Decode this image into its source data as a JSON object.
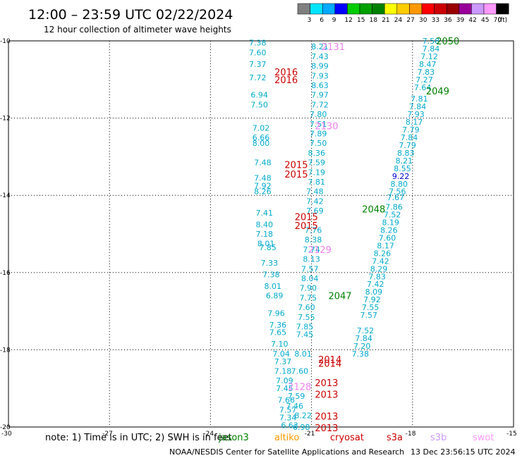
{
  "title": "12:00 – 23:59 UTC 02/22/2024",
  "subtitle": "12 hour collection of altimeter wave heights",
  "colorbar": {
    "labels": [
      "3",
      "6",
      "9",
      "12",
      "15",
      "18",
      "21",
      "24",
      "27",
      "30",
      "33",
      "36",
      "39",
      "42",
      "45",
      "70"
    ],
    "unit": "(ft)",
    "colors": [
      "#808080",
      "#00e5ff",
      "#00aaff",
      "#0000ff",
      "#00cc00",
      "#00a000",
      "#008000",
      "#ffff00",
      "#ffcc00",
      "#ff9900",
      "#ff0000",
      "#cc0000",
      "#990000",
      "#990099",
      "#cc99ff",
      "#ff99ff",
      "#000000"
    ]
  },
  "note": "note:  1) Time is in UTC; 2) SWH is in feet",
  "satellites": [
    {
      "name": "jason3",
      "color": "#008000"
    },
    {
      "name": "altiko",
      "color": "#ff9900"
    },
    {
      "name": "cryosat",
      "color": "#cc0000"
    },
    {
      "name": "s3a",
      "color": "#cc0000"
    },
    {
      "name": "s3b",
      "color": "#cc99ff"
    },
    {
      "name": "swot",
      "color": "#ff99ff"
    }
  ],
  "credit": "NOAA/NESDIS Center for Satellite Applications and Research",
  "timestamp": "13 Dec 23:56:15 UTC 2024",
  "chart_data": {
    "type": "scatter",
    "xlim": [
      -30,
      -15
    ],
    "ylim": [
      -20,
      -10
    ],
    "xticks": [
      "-30",
      "-27",
      "-24",
      "-21",
      "-18",
      "-15"
    ],
    "yticks": [
      "-10",
      "-12",
      "-14",
      "-16",
      "-18",
      "-20"
    ],
    "grid": true,
    "track_labels": [
      {
        "text": "2050",
        "x": -17.3,
        "y": -10.0,
        "color": "#008000"
      },
      {
        "text": "2049",
        "x": -17.6,
        "y": -11.3,
        "color": "#008000"
      },
      {
        "text": "2048",
        "x": -19.5,
        "y": -14.35,
        "color": "#008000"
      },
      {
        "text": "2047",
        "x": -20.5,
        "y": -16.6,
        "color": "#008000"
      },
      {
        "text": "2131",
        "x": -20.7,
        "y": -10.15,
        "color": "#ee82ee"
      },
      {
        "text": "2130",
        "x": -20.9,
        "y": -12.2,
        "color": "#ee82ee"
      },
      {
        "text": "2129",
        "x": -21.1,
        "y": -15.4,
        "color": "#ee82ee"
      },
      {
        "text": "2128",
        "x": -21.7,
        "y": -18.95,
        "color": "#ee82ee"
      },
      {
        "text": "2016",
        "x": -22.1,
        "y": -10.8,
        "color": "#cc0000"
      },
      {
        "text": "2016",
        "x": -22.1,
        "y": -11.0,
        "color": "#cc0000"
      },
      {
        "text": "2015",
        "x": -21.8,
        "y": -13.2,
        "color": "#cc0000"
      },
      {
        "text": "2015",
        "x": -21.8,
        "y": -13.45,
        "color": "#cc0000"
      },
      {
        "text": "2015",
        "x": -21.5,
        "y": -14.55,
        "color": "#cc0000"
      },
      {
        "text": "2015",
        "x": -21.5,
        "y": -14.78,
        "color": "#cc0000"
      },
      {
        "text": "2014",
        "x": -20.8,
        "y": -18.25,
        "color": "#cc0000"
      },
      {
        "text": "2014",
        "x": -20.8,
        "y": -18.35,
        "color": "#cc0000"
      },
      {
        "text": "2013",
        "x": -20.9,
        "y": -18.85,
        "color": "#cc0000"
      },
      {
        "text": "2013",
        "x": -20.9,
        "y": -19.15,
        "color": "#cc0000"
      },
      {
        "text": "2013",
        "x": -20.9,
        "y": -19.72,
        "color": "#cc0000"
      },
      {
        "text": "2013",
        "x": -20.9,
        "y": -20.02,
        "color": "#cc0000"
      }
    ],
    "points": [
      {
        "v": "7.58",
        "x": -17.45,
        "y": -10.0,
        "c": "#00aacc"
      },
      {
        "v": "7.84",
        "x": -17.45,
        "y": -10.2,
        "c": "#00aacc"
      },
      {
        "v": "7.12",
        "x": -17.5,
        "y": -10.4,
        "c": "#00aacc"
      },
      {
        "v": "8.47",
        "x": -17.55,
        "y": -10.6,
        "c": "#00aacc"
      },
      {
        "v": "7.83",
        "x": -17.6,
        "y": -10.8,
        "c": "#00aacc"
      },
      {
        "v": "7.27",
        "x": -17.65,
        "y": -11.0,
        "c": "#00aacc"
      },
      {
        "v": "7.64",
        "x": -17.7,
        "y": -11.2,
        "c": "#00aacc"
      },
      {
        "v": "7.81",
        "x": -17.8,
        "y": -11.5,
        "c": "#00aacc"
      },
      {
        "v": "7.84",
        "x": -17.85,
        "y": -11.7,
        "c": "#00aacc"
      },
      {
        "v": "7.93",
        "x": -17.9,
        "y": -11.9,
        "c": "#00aacc"
      },
      {
        "v": "8.17",
        "x": -17.95,
        "y": -12.1,
        "c": "#00aacc"
      },
      {
        "v": "7.79",
        "x": -18.05,
        "y": -12.3,
        "c": "#00aacc"
      },
      {
        "v": "7.84",
        "x": -18.1,
        "y": -12.5,
        "c": "#00aacc"
      },
      {
        "v": "7.79",
        "x": -18.15,
        "y": -12.7,
        "c": "#00aacc"
      },
      {
        "v": "8.83",
        "x": -18.2,
        "y": -12.9,
        "c": "#00aacc"
      },
      {
        "v": "8.21",
        "x": -18.25,
        "y": -13.1,
        "c": "#00aacc"
      },
      {
        "v": "8.55",
        "x": -18.3,
        "y": -13.3,
        "c": "#00aacc"
      },
      {
        "v": "9.22",
        "x": -18.35,
        "y": -13.5,
        "c": "#0000cc"
      },
      {
        "v": "8.80",
        "x": -18.4,
        "y": -13.7,
        "c": "#00aacc"
      },
      {
        "v": "7.56",
        "x": -18.45,
        "y": -13.9,
        "c": "#00aacc"
      },
      {
        "v": "7.67",
        "x": -18.5,
        "y": -14.05,
        "c": "#00aacc"
      },
      {
        "v": "7.86",
        "x": -18.55,
        "y": -14.3,
        "c": "#00aacc"
      },
      {
        "v": "7.52",
        "x": -18.6,
        "y": -14.5,
        "c": "#00aacc"
      },
      {
        "v": "8.19",
        "x": -18.65,
        "y": -14.7,
        "c": "#00aacc"
      },
      {
        "v": "8.26",
        "x": -18.7,
        "y": -14.9,
        "c": "#00aacc"
      },
      {
        "v": "7.60",
        "x": -18.75,
        "y": -15.1,
        "c": "#00aacc"
      },
      {
        "v": "8.17",
        "x": -18.8,
        "y": -15.3,
        "c": "#00aacc"
      },
      {
        "v": "8.26",
        "x": -18.9,
        "y": -15.5,
        "c": "#00aacc"
      },
      {
        "v": "7.42",
        "x": -18.95,
        "y": -15.7,
        "c": "#00aacc"
      },
      {
        "v": "8.29",
        "x": -19.0,
        "y": -15.9,
        "c": "#00aacc"
      },
      {
        "v": "7.83",
        "x": -19.05,
        "y": -16.1,
        "c": "#00aacc"
      },
      {
        "v": "7.42",
        "x": -19.1,
        "y": -16.3,
        "c": "#00aacc"
      },
      {
        "v": "8.09",
        "x": -19.15,
        "y": -16.5,
        "c": "#00aacc"
      },
      {
        "v": "7.92",
        "x": -19.2,
        "y": -16.7,
        "c": "#00aacc"
      },
      {
        "v": "7.55",
        "x": -19.25,
        "y": -16.9,
        "c": "#00aacc"
      },
      {
        "v": "7.57",
        "x": -19.3,
        "y": -17.1,
        "c": "#00aacc"
      },
      {
        "v": "7.52",
        "x": -19.4,
        "y": -17.5,
        "c": "#00aacc"
      },
      {
        "v": "7.84",
        "x": -19.45,
        "y": -17.7,
        "c": "#00aacc"
      },
      {
        "v": "7.20",
        "x": -19.5,
        "y": -17.9,
        "c": "#00aacc"
      },
      {
        "v": "7.38",
        "x": -19.55,
        "y": -18.1,
        "c": "#00aacc"
      },
      {
        "v": "8.21",
        "x": -20.75,
        "y": -10.15,
        "c": "#00aacc"
      },
      {
        "v": "7.43",
        "x": -20.75,
        "y": -10.4,
        "c": "#00aacc"
      },
      {
        "v": "8.99",
        "x": -20.75,
        "y": -10.65,
        "c": "#00aacc"
      },
      {
        "v": "7.93",
        "x": -20.75,
        "y": -10.9,
        "c": "#00aacc"
      },
      {
        "v": "8.63",
        "x": -20.75,
        "y": -11.15,
        "c": "#00aacc"
      },
      {
        "v": "7.97",
        "x": -20.75,
        "y": -11.4,
        "c": "#00aacc"
      },
      {
        "v": "7.72",
        "x": -20.75,
        "y": -11.65,
        "c": "#00aacc"
      },
      {
        "v": "7.80",
        "x": -20.8,
        "y": -11.9,
        "c": "#00aacc"
      },
      {
        "v": "7.51",
        "x": -20.8,
        "y": -12.15,
        "c": "#00aacc"
      },
      {
        "v": "7.89",
        "x": -20.8,
        "y": -12.4,
        "c": "#00aacc"
      },
      {
        "v": "7.50",
        "x": -20.8,
        "y": -12.65,
        "c": "#00aacc"
      },
      {
        "v": "8.36",
        "x": -20.85,
        "y": -12.9,
        "c": "#00aacc"
      },
      {
        "v": "7.59",
        "x": -20.85,
        "y": -13.15,
        "c": "#00aacc"
      },
      {
        "v": "7.19",
        "x": -20.85,
        "y": -13.4,
        "c": "#00aacc"
      },
      {
        "v": "7.81",
        "x": -20.85,
        "y": -13.65,
        "c": "#00aacc"
      },
      {
        "v": "7.48",
        "x": -20.9,
        "y": -13.9,
        "c": "#00aacc"
      },
      {
        "v": "7.42",
        "x": -20.9,
        "y": -14.15,
        "c": "#00aacc"
      },
      {
        "v": "7.69",
        "x": -20.9,
        "y": -14.4,
        "c": "#00aacc"
      },
      {
        "v": "7.76",
        "x": -20.95,
        "y": -14.9,
        "c": "#00aacc"
      },
      {
        "v": "8.38",
        "x": -20.95,
        "y": -15.15,
        "c": "#00aacc"
      },
      {
        "v": "7.74",
        "x": -21.0,
        "y": -15.4,
        "c": "#00aacc"
      },
      {
        "v": "8.13",
        "x": -21.0,
        "y": -15.65,
        "c": "#00aacc"
      },
      {
        "v": "7.57",
        "x": -21.05,
        "y": -15.9,
        "c": "#00aacc"
      },
      {
        "v": "8.04",
        "x": -21.05,
        "y": -16.15,
        "c": "#00aacc"
      },
      {
        "v": "7.90",
        "x": -21.1,
        "y": -16.4,
        "c": "#00aacc"
      },
      {
        "v": "7.75",
        "x": -21.1,
        "y": -16.65,
        "c": "#00aacc"
      },
      {
        "v": "7.60",
        "x": -21.15,
        "y": -16.9,
        "c": "#00aacc"
      },
      {
        "v": "7.55",
        "x": -21.15,
        "y": -17.15,
        "c": "#00aacc"
      },
      {
        "v": "7.85",
        "x": -21.2,
        "y": -17.4,
        "c": "#00aacc"
      },
      {
        "v": "7.45",
        "x": -21.2,
        "y": -17.6,
        "c": "#00aacc"
      },
      {
        "v": "8.01",
        "x": -21.25,
        "y": -18.1,
        "c": "#00aacc"
      },
      {
        "v": "7.60",
        "x": -21.35,
        "y": -18.55,
        "c": "#00aacc"
      },
      {
        "v": "7.59",
        "x": -21.45,
        "y": -19.2,
        "c": "#00aacc"
      },
      {
        "v": "7.46",
        "x": -21.5,
        "y": -19.45,
        "c": "#00aacc"
      },
      {
        "v": "7.38",
        "x": -22.6,
        "y": -10.05,
        "c": "#00aacc"
      },
      {
        "v": "7.60",
        "x": -22.6,
        "y": -10.3,
        "c": "#00aacc"
      },
      {
        "v": "7.37",
        "x": -22.6,
        "y": -10.6,
        "c": "#00aacc"
      },
      {
        "v": "7.72",
        "x": -22.6,
        "y": -10.95,
        "c": "#00aacc"
      },
      {
        "v": "6.94",
        "x": -22.55,
        "y": -11.4,
        "c": "#00aacc"
      },
      {
        "v": "7.50",
        "x": -22.55,
        "y": -11.65,
        "c": "#00aacc"
      },
      {
        "v": "7.02",
        "x": -22.5,
        "y": -12.25,
        "c": "#00aacc"
      },
      {
        "v": "6.66",
        "x": -22.5,
        "y": -12.5,
        "c": "#00aacc"
      },
      {
        "v": "8.00",
        "x": -22.5,
        "y": -12.65,
        "c": "#00aacc"
      },
      {
        "v": "7.48",
        "x": -22.45,
        "y": -13.15,
        "c": "#00aacc"
      },
      {
        "v": "7.48",
        "x": -22.45,
        "y": -13.55,
        "c": "#00aacc"
      },
      {
        "v": "7.92",
        "x": -22.45,
        "y": -13.75,
        "c": "#00aacc"
      },
      {
        "v": "8.26",
        "x": -22.45,
        "y": -13.9,
        "c": "#00aacc"
      },
      {
        "v": "7.41",
        "x": -22.4,
        "y": -14.45,
        "c": "#00aacc"
      },
      {
        "v": "8.40",
        "x": -22.4,
        "y": -14.75,
        "c": "#00aacc"
      },
      {
        "v": "7.18",
        "x": -22.4,
        "y": -15.0,
        "c": "#00aacc"
      },
      {
        "v": "8.01",
        "x": -22.35,
        "y": -15.25,
        "c": "#00aacc"
      },
      {
        "v": "7.85",
        "x": -22.3,
        "y": -15.35,
        "c": "#00aacc"
      },
      {
        "v": "7.33",
        "x": -22.25,
        "y": -15.75,
        "c": "#00aacc"
      },
      {
        "v": "7.38",
        "x": -22.2,
        "y": -16.05,
        "c": "#00aacc"
      },
      {
        "v": "8.01",
        "x": -22.15,
        "y": -16.35,
        "c": "#00aacc"
      },
      {
        "v": "6.89",
        "x": -22.1,
        "y": -16.6,
        "c": "#00aacc"
      },
      {
        "v": "7.96",
        "x": -22.05,
        "y": -17.05,
        "c": "#00aacc"
      },
      {
        "v": "7.36",
        "x": -22.0,
        "y": -17.35,
        "c": "#00aacc"
      },
      {
        "v": "7.65",
        "x": -22.0,
        "y": -17.55,
        "c": "#00aacc"
      },
      {
        "v": "7.10",
        "x": -21.95,
        "y": -17.85,
        "c": "#00aacc"
      },
      {
        "v": "7.04",
        "x": -21.9,
        "y": -18.1,
        "c": "#00aacc"
      },
      {
        "v": "7.37",
        "x": -21.85,
        "y": -18.3,
        "c": "#00aacc"
      },
      {
        "v": "7.18",
        "x": -21.85,
        "y": -18.55,
        "c": "#00aacc"
      },
      {
        "v": "7.09",
        "x": -21.8,
        "y": -18.8,
        "c": "#00aacc"
      },
      {
        "v": "7.45",
        "x": -21.8,
        "y": -19.0,
        "c": "#00aacc"
      },
      {
        "v": "7.66",
        "x": -21.75,
        "y": -19.3,
        "c": "#00aacc"
      },
      {
        "v": "7.57",
        "x": -21.7,
        "y": -19.55,
        "c": "#00aacc"
      },
      {
        "v": "7.34",
        "x": -21.7,
        "y": -19.75,
        "c": "#00aacc"
      },
      {
        "v": "6.63",
        "x": -21.65,
        "y": -19.95,
        "c": "#00aacc"
      },
      {
        "v": "6.98",
        "x": -21.3,
        "y": -20.0,
        "c": "#00aacc"
      },
      {
        "v": "8.22",
        "x": -21.25,
        "y": -19.7,
        "c": "#00aacc"
      }
    ]
  }
}
